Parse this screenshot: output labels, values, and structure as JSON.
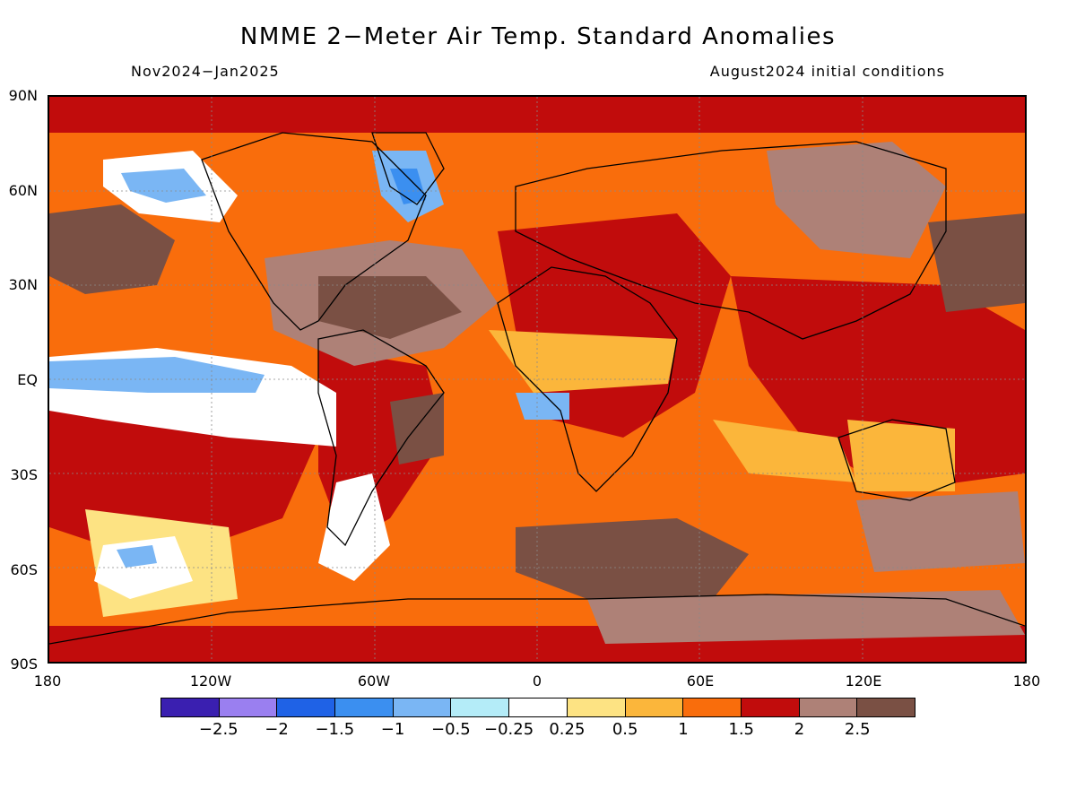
{
  "header": {
    "title": "NMME 2−Meter Air Temp. Standard Anomalies",
    "period": "Nov2024−Jan2025",
    "initial_conditions": "August2024 initial conditions"
  },
  "map": {
    "lat_ticks": [
      "90N",
      "60N",
      "30N",
      "EQ",
      "30S",
      "60S",
      "90S"
    ],
    "lon_ticks": [
      "180",
      "120W",
      "60W",
      "0",
      "60E",
      "120E",
      "180"
    ]
  },
  "colorbar": {
    "colors": [
      "#3a1fb0",
      "#9a7ff0",
      "#1f62e6",
      "#3b8ff0",
      "#7ab6f4",
      "#b4ecf8",
      "#ffffff",
      "#fde383",
      "#fbb63b",
      "#f96d0c",
      "#c10c0c",
      "#ae8177",
      "#7a5044"
    ],
    "labels": [
      "−2.5",
      "−2",
      "−1.5",
      "−1",
      "−0.5",
      "−0.25",
      "0.25",
      "0.5",
      "1",
      "1.5",
      "2",
      "2.5"
    ]
  }
}
